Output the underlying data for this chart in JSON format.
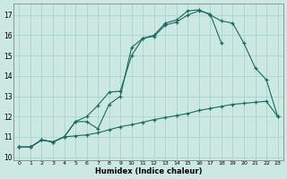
{
  "xlabel": "Humidex (Indice chaleur)",
  "bg_color": "#cce8e3",
  "grid_color": "#aad4ce",
  "line_color": "#1a6b5e",
  "xlim_min": -0.5,
  "xlim_max": 23.5,
  "ylim_min": 9.85,
  "ylim_max": 17.55,
  "yticks": [
    10,
    11,
    12,
    13,
    14,
    15,
    16,
    17
  ],
  "xticks": [
    0,
    1,
    2,
    3,
    4,
    5,
    6,
    7,
    8,
    9,
    10,
    11,
    12,
    13,
    14,
    15,
    16,
    17,
    18,
    19,
    20,
    21,
    22,
    23
  ],
  "line1_x": [
    0,
    1,
    2,
    3,
    4,
    5,
    6,
    7,
    8,
    9,
    10,
    11,
    12,
    13,
    14,
    15,
    16,
    17,
    18,
    19,
    20,
    21,
    22,
    23
  ],
  "line1_y": [
    10.5,
    10.5,
    10.85,
    10.75,
    11.0,
    11.05,
    11.1,
    11.2,
    11.35,
    11.5,
    11.6,
    11.72,
    11.85,
    11.95,
    12.05,
    12.15,
    12.3,
    12.4,
    12.5,
    12.6,
    12.65,
    12.7,
    12.75,
    12.0
  ],
  "line2_x": [
    0,
    1,
    2,
    3,
    4,
    5,
    6,
    7,
    8,
    9,
    10,
    11,
    12,
    13,
    14,
    15,
    16,
    17,
    18
  ],
  "line2_y": [
    10.5,
    10.5,
    10.85,
    10.75,
    11.0,
    11.75,
    11.75,
    11.4,
    12.6,
    13.0,
    15.4,
    15.85,
    15.95,
    16.5,
    16.65,
    17.0,
    17.2,
    17.05,
    15.6
  ],
  "line3_x": [
    0,
    1,
    2,
    3,
    4,
    5,
    6,
    7,
    8,
    9,
    10,
    11,
    12,
    13,
    14,
    15,
    16,
    17,
    18,
    19,
    20,
    21,
    22,
    23
  ],
  "line3_y": [
    10.5,
    10.5,
    10.85,
    10.75,
    11.0,
    11.75,
    12.0,
    12.55,
    13.2,
    13.25,
    15.0,
    15.85,
    16.0,
    16.6,
    16.75,
    17.2,
    17.25,
    17.0,
    16.7,
    16.6,
    15.6,
    14.4,
    13.8,
    12.0
  ]
}
